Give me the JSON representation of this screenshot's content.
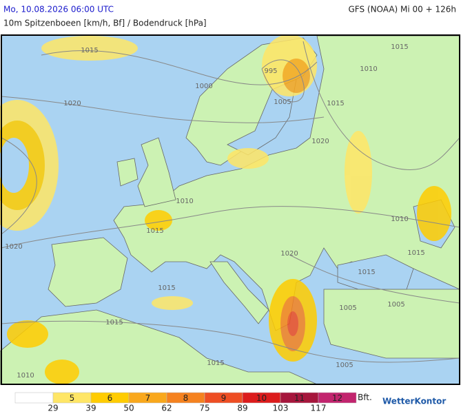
{
  "header": {
    "datetime": "Mo, 10.08.2026 06:00 UTC",
    "model": "GFS (NOAA) Mi 00 + 126h",
    "subtitle": "10m Spitzenboeen [km/h, Bf] / Bodendruck [hPa]"
  },
  "isobar_labels": [
    "1015",
    "1015",
    "995",
    "1000",
    "1010",
    "1020",
    "1005",
    "1015",
    "1020",
    "1010",
    "1015",
    "1010",
    "1020",
    "1020",
    "1015",
    "1015",
    "1015",
    "1005",
    "1005",
    "1015",
    "1010",
    "1015",
    "1005"
  ],
  "legend": {
    "bft": [
      5,
      6,
      7,
      8,
      9,
      10,
      11,
      12
    ],
    "unit": "Bft.",
    "kmh": [
      29,
      39,
      50,
      62,
      75,
      89,
      103,
      117
    ],
    "colors": [
      "#ffffff",
      "#ffe666",
      "#ffcc00",
      "#f9a81c",
      "#f5821f",
      "#ee4e23",
      "#dc1c1c",
      "#a6163c",
      "#c2246e"
    ]
  },
  "brand": "WetterKontor"
}
